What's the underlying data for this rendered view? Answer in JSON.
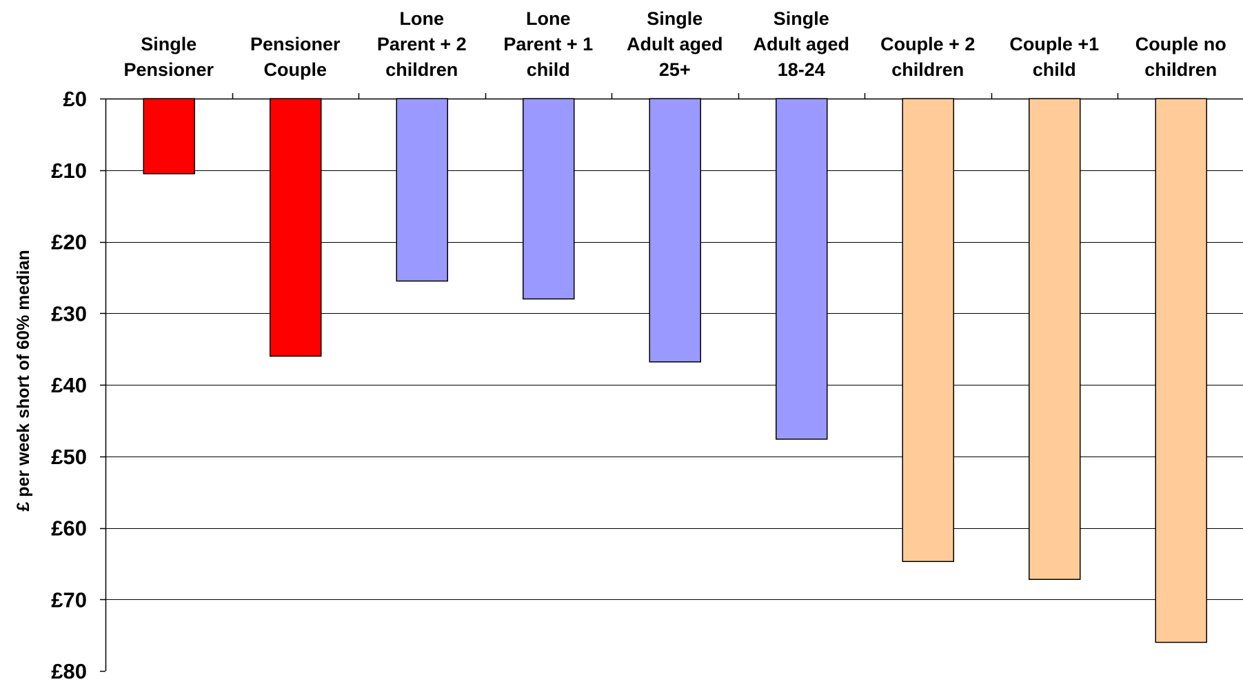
{
  "chart_data": {
    "type": "bar",
    "orientation": "vertical-inverted",
    "title": "",
    "xlabel": "",
    "ylabel": "£ per week short of 60% median",
    "ylim": [
      0,
      80
    ],
    "y_ticks": [
      {
        "value": 0,
        "label": "£0"
      },
      {
        "value": 10,
        "label": "£10"
      },
      {
        "value": 20,
        "label": "£20"
      },
      {
        "value": 30,
        "label": "£30"
      },
      {
        "value": 40,
        "label": "£40"
      },
      {
        "value": 50,
        "label": "£50"
      },
      {
        "value": 60,
        "label": "£60"
      },
      {
        "value": 70,
        "label": "£70"
      },
      {
        "value": 80,
        "label": "£80"
      }
    ],
    "grid": true,
    "legend": "none",
    "categories": [
      [
        "Single",
        "Pensioner"
      ],
      [
        "Pensioner",
        "Couple"
      ],
      [
        "Lone",
        "Parent + 2",
        "children"
      ],
      [
        "Lone",
        "Parent + 1",
        "child"
      ],
      [
        "Single",
        "Adult aged",
        "25+"
      ],
      [
        "Single",
        "Adult aged",
        "18-24"
      ],
      [
        "Couple + 2",
        "children"
      ],
      [
        "Couple +1",
        "child"
      ],
      [
        "Couple no",
        "children"
      ]
    ],
    "values": [
      10.5,
      36,
      25.5,
      28,
      36.8,
      47.6,
      64.7,
      67.2,
      76
    ],
    "colors": [
      "#ff0000",
      "#ff0000",
      "#9999ff",
      "#9999ff",
      "#9999ff",
      "#9999ff",
      "#ffcc99",
      "#ffcc99",
      "#ffcc99"
    ],
    "bar_outline": "#000000",
    "grid_color": "#000000",
    "background": "#ffffff"
  }
}
